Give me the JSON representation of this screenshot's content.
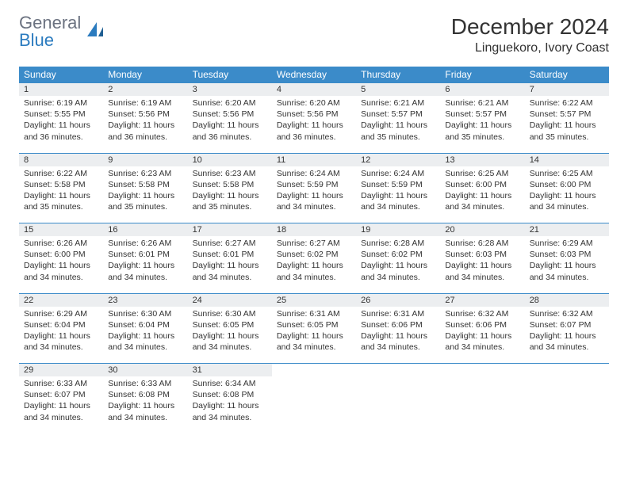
{
  "logo": {
    "text1": "General",
    "text2": "Blue"
  },
  "title": "December 2024",
  "location": "Linguekoro, Ivory Coast",
  "colors": {
    "header_bg": "#3b8bc9",
    "header_text": "#ffffff",
    "daynum_bg": "#eceef0",
    "border": "#3b8bc9",
    "logo_gray": "#6b7280",
    "logo_blue": "#2b7bbf"
  },
  "dayHeaders": [
    "Sunday",
    "Monday",
    "Tuesday",
    "Wednesday",
    "Thursday",
    "Friday",
    "Saturday"
  ],
  "weeks": [
    [
      {
        "n": "1",
        "sr": "6:19 AM",
        "ss": "5:55 PM",
        "dl": "11 hours and 36 minutes."
      },
      {
        "n": "2",
        "sr": "6:19 AM",
        "ss": "5:56 PM",
        "dl": "11 hours and 36 minutes."
      },
      {
        "n": "3",
        "sr": "6:20 AM",
        "ss": "5:56 PM",
        "dl": "11 hours and 36 minutes."
      },
      {
        "n": "4",
        "sr": "6:20 AM",
        "ss": "5:56 PM",
        "dl": "11 hours and 36 minutes."
      },
      {
        "n": "5",
        "sr": "6:21 AM",
        "ss": "5:57 PM",
        "dl": "11 hours and 35 minutes."
      },
      {
        "n": "6",
        "sr": "6:21 AM",
        "ss": "5:57 PM",
        "dl": "11 hours and 35 minutes."
      },
      {
        "n": "7",
        "sr": "6:22 AM",
        "ss": "5:57 PM",
        "dl": "11 hours and 35 minutes."
      }
    ],
    [
      {
        "n": "8",
        "sr": "6:22 AM",
        "ss": "5:58 PM",
        "dl": "11 hours and 35 minutes."
      },
      {
        "n": "9",
        "sr": "6:23 AM",
        "ss": "5:58 PM",
        "dl": "11 hours and 35 minutes."
      },
      {
        "n": "10",
        "sr": "6:23 AM",
        "ss": "5:58 PM",
        "dl": "11 hours and 35 minutes."
      },
      {
        "n": "11",
        "sr": "6:24 AM",
        "ss": "5:59 PM",
        "dl": "11 hours and 34 minutes."
      },
      {
        "n": "12",
        "sr": "6:24 AM",
        "ss": "5:59 PM",
        "dl": "11 hours and 34 minutes."
      },
      {
        "n": "13",
        "sr": "6:25 AM",
        "ss": "6:00 PM",
        "dl": "11 hours and 34 minutes."
      },
      {
        "n": "14",
        "sr": "6:25 AM",
        "ss": "6:00 PM",
        "dl": "11 hours and 34 minutes."
      }
    ],
    [
      {
        "n": "15",
        "sr": "6:26 AM",
        "ss": "6:00 PM",
        "dl": "11 hours and 34 minutes."
      },
      {
        "n": "16",
        "sr": "6:26 AM",
        "ss": "6:01 PM",
        "dl": "11 hours and 34 minutes."
      },
      {
        "n": "17",
        "sr": "6:27 AM",
        "ss": "6:01 PM",
        "dl": "11 hours and 34 minutes."
      },
      {
        "n": "18",
        "sr": "6:27 AM",
        "ss": "6:02 PM",
        "dl": "11 hours and 34 minutes."
      },
      {
        "n": "19",
        "sr": "6:28 AM",
        "ss": "6:02 PM",
        "dl": "11 hours and 34 minutes."
      },
      {
        "n": "20",
        "sr": "6:28 AM",
        "ss": "6:03 PM",
        "dl": "11 hours and 34 minutes."
      },
      {
        "n": "21",
        "sr": "6:29 AM",
        "ss": "6:03 PM",
        "dl": "11 hours and 34 minutes."
      }
    ],
    [
      {
        "n": "22",
        "sr": "6:29 AM",
        "ss": "6:04 PM",
        "dl": "11 hours and 34 minutes."
      },
      {
        "n": "23",
        "sr": "6:30 AM",
        "ss": "6:04 PM",
        "dl": "11 hours and 34 minutes."
      },
      {
        "n": "24",
        "sr": "6:30 AM",
        "ss": "6:05 PM",
        "dl": "11 hours and 34 minutes."
      },
      {
        "n": "25",
        "sr": "6:31 AM",
        "ss": "6:05 PM",
        "dl": "11 hours and 34 minutes."
      },
      {
        "n": "26",
        "sr": "6:31 AM",
        "ss": "6:06 PM",
        "dl": "11 hours and 34 minutes."
      },
      {
        "n": "27",
        "sr": "6:32 AM",
        "ss": "6:06 PM",
        "dl": "11 hours and 34 minutes."
      },
      {
        "n": "28",
        "sr": "6:32 AM",
        "ss": "6:07 PM",
        "dl": "11 hours and 34 minutes."
      }
    ],
    [
      {
        "n": "29",
        "sr": "6:33 AM",
        "ss": "6:07 PM",
        "dl": "11 hours and 34 minutes."
      },
      {
        "n": "30",
        "sr": "6:33 AM",
        "ss": "6:08 PM",
        "dl": "11 hours and 34 minutes."
      },
      {
        "n": "31",
        "sr": "6:34 AM",
        "ss": "6:08 PM",
        "dl": "11 hours and 34 minutes."
      },
      null,
      null,
      null,
      null
    ]
  ],
  "labels": {
    "sunrise": "Sunrise:",
    "sunset": "Sunset:",
    "daylight": "Daylight:"
  }
}
